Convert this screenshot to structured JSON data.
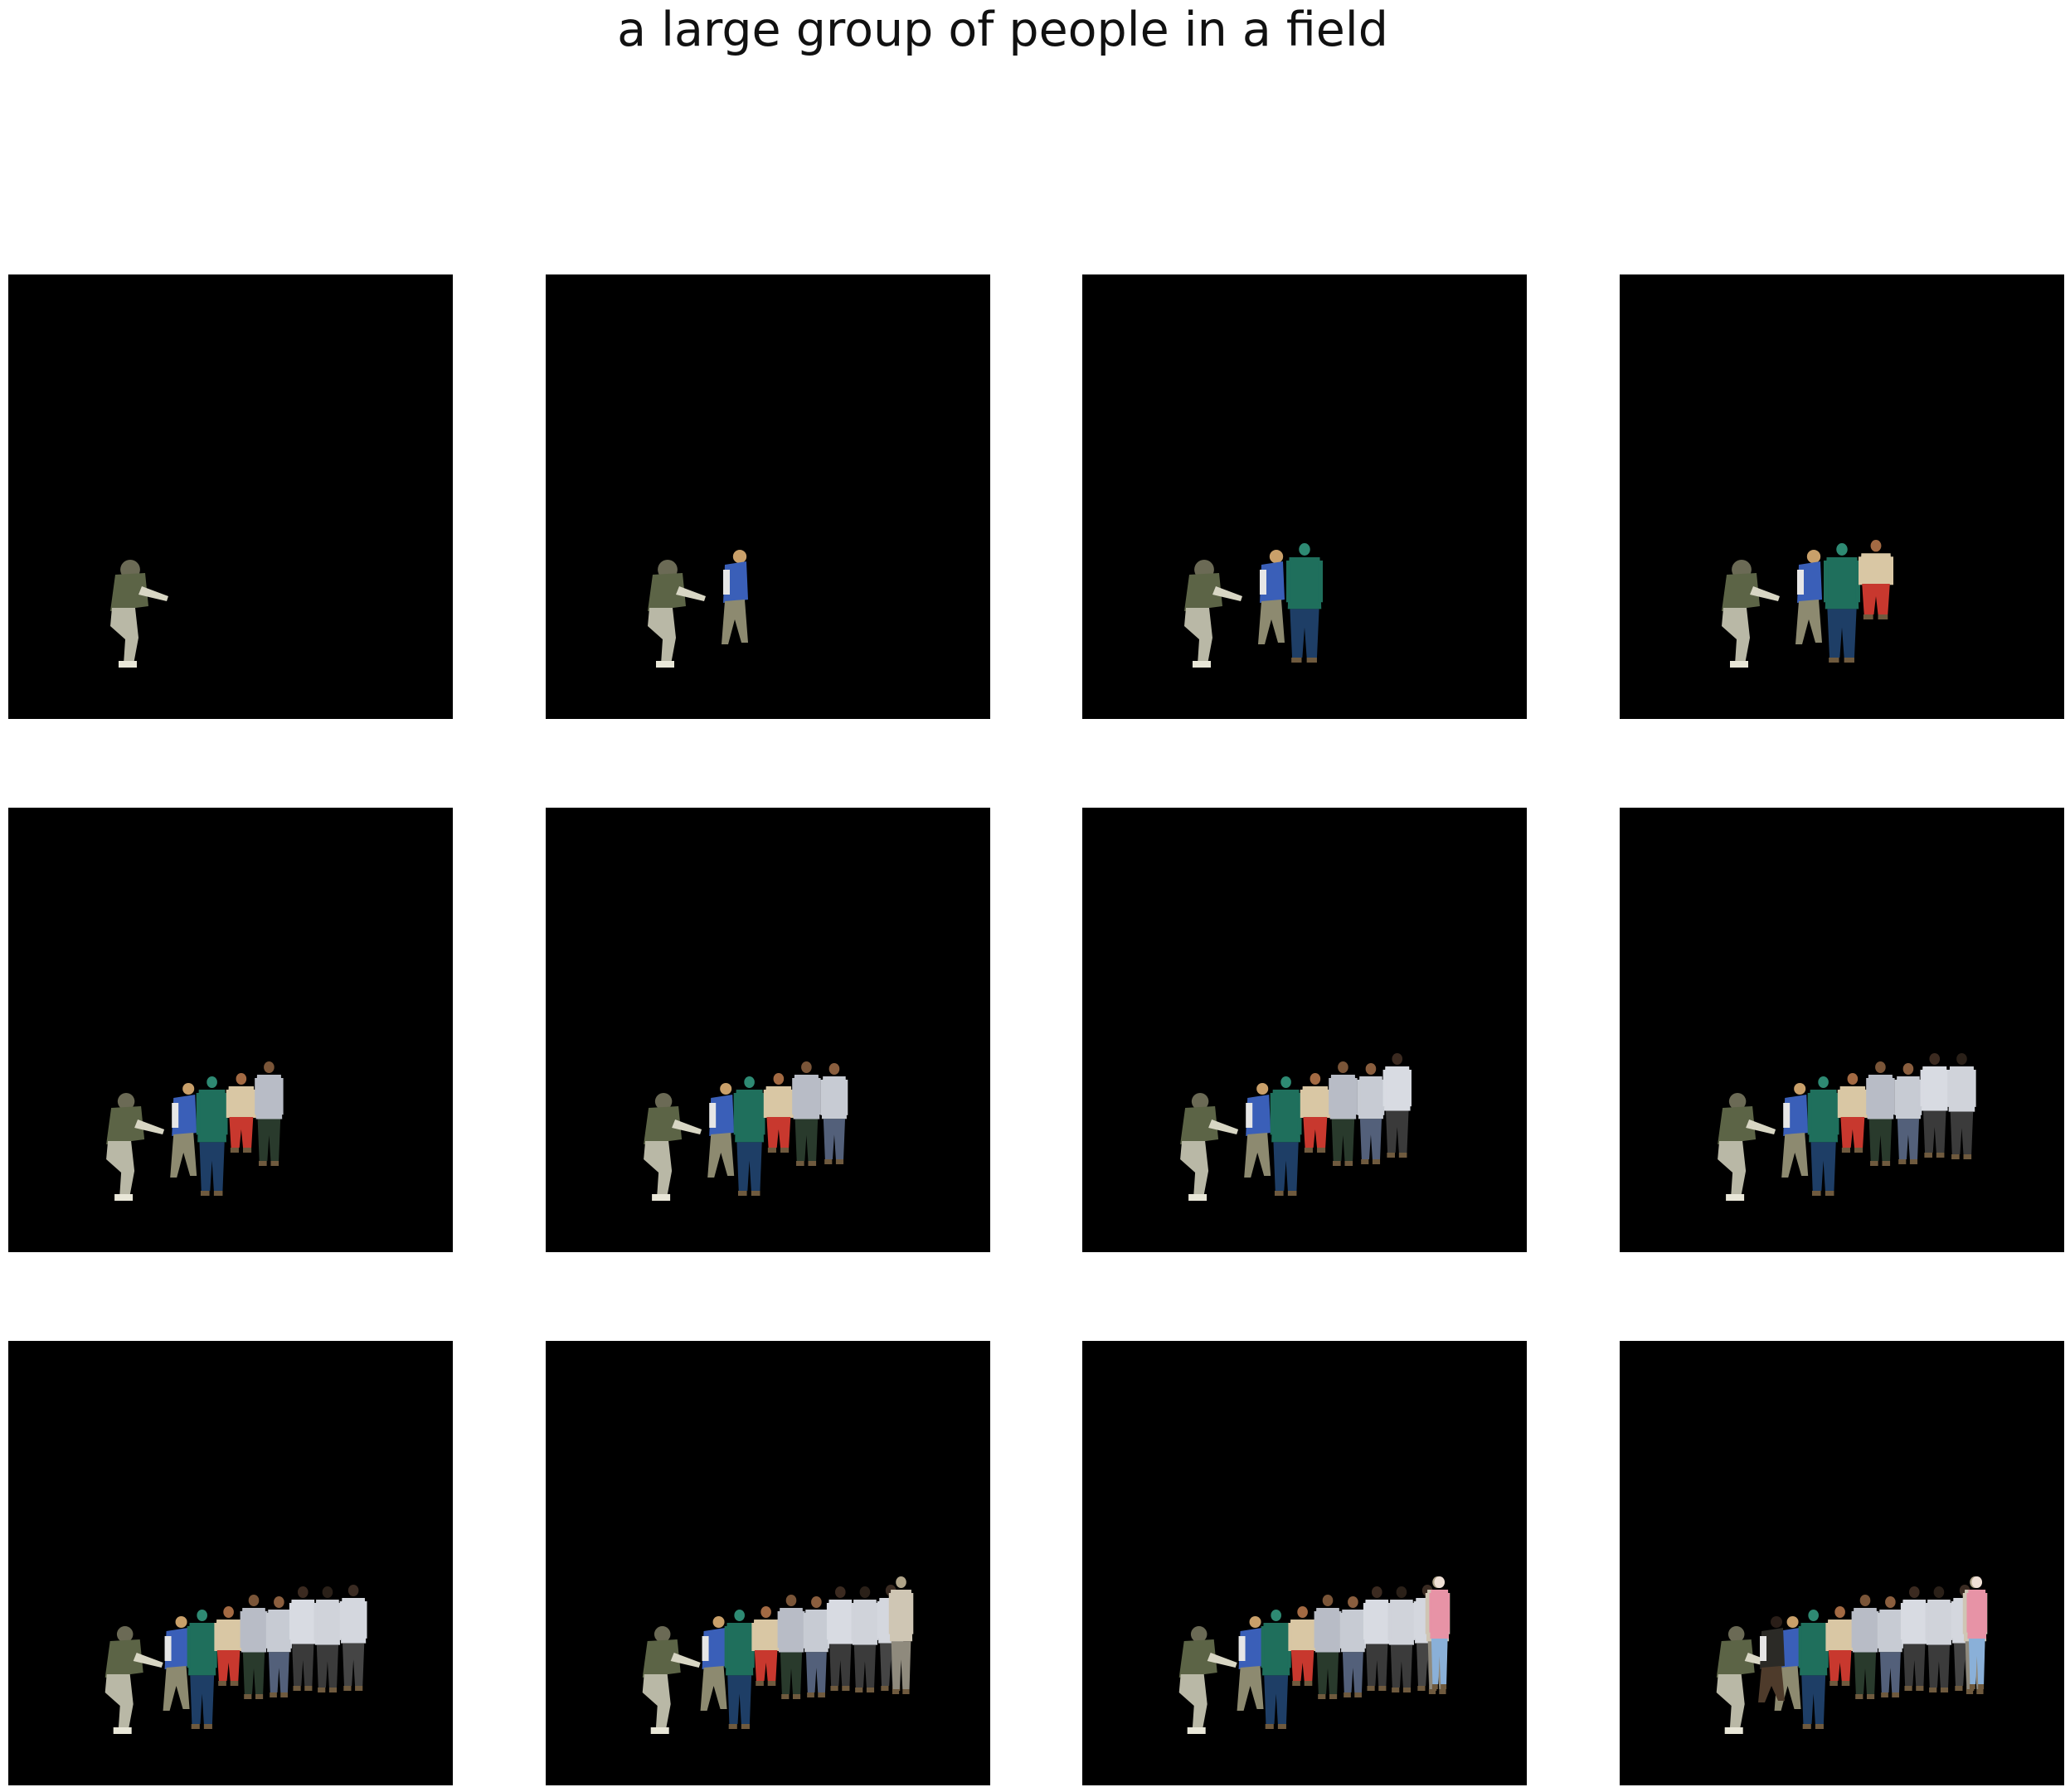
{
  "figure": {
    "title": "a large group of people in a field"
  },
  "panels": [
    {
      "figures_shown": 1
    },
    {
      "figures_shown": 2
    },
    {
      "figures_shown": 3
    },
    {
      "figures_shown": 4
    },
    {
      "figures_shown": 5
    },
    {
      "figures_shown": 6
    },
    {
      "figures_shown": 7
    },
    {
      "figures_shown": 8
    },
    {
      "figures_shown": 9
    },
    {
      "figures_shown": 10
    },
    {
      "figures_shown": 11
    },
    {
      "figures_shown": 12
    }
  ],
  "colors": {
    "panel_background": "#000000",
    "page_background": "#ffffff",
    "title_text": "#111111"
  }
}
